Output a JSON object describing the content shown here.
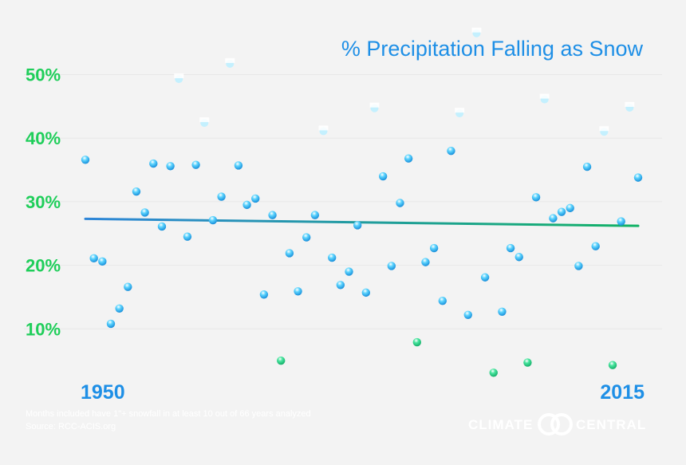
{
  "chart_data": {
    "type": "scatter",
    "title": "% Precipitation Falling as Snow",
    "xlabel": "",
    "ylabel": "",
    "xlim": [
      1950,
      2015
    ],
    "ylim": [
      0,
      55
    ],
    "y_ticks": [
      {
        "value": 10,
        "label": "10%"
      },
      {
        "value": 20,
        "label": "20%"
      },
      {
        "value": 30,
        "label": "30%"
      },
      {
        "value": 40,
        "label": "40%"
      },
      {
        "value": 50,
        "label": "50%"
      }
    ],
    "x_ticks": [
      {
        "value": 1950,
        "label": "1950"
      },
      {
        "value": 2015,
        "label": "2015"
      }
    ],
    "grid": true,
    "series": [
      {
        "points": [
          [
            1950,
            36.6
          ],
          [
            1951,
            21.1
          ],
          [
            1952,
            20.6
          ],
          [
            1953,
            10.8
          ],
          [
            1954,
            13.2
          ],
          [
            1955,
            16.6
          ],
          [
            1956,
            31.6
          ],
          [
            1957,
            28.3
          ],
          [
            1958,
            36.0
          ],
          [
            1959,
            26.1
          ],
          [
            1960,
            35.6
          ],
          [
            1961,
            49.3
          ],
          [
            1962,
            24.5
          ],
          [
            1963,
            35.8
          ],
          [
            1964,
            42.4
          ],
          [
            1965,
            27.1
          ],
          [
            1966,
            30.8
          ],
          [
            1967,
            51.7
          ],
          [
            1968,
            35.7
          ],
          [
            1969,
            29.5
          ],
          [
            1970,
            30.5
          ],
          [
            1971,
            15.4
          ],
          [
            1972,
            27.9
          ],
          [
            1973,
            5.0
          ],
          [
            1974,
            21.9
          ],
          [
            1975,
            15.9
          ],
          [
            1976,
            24.4
          ],
          [
            1977,
            27.9
          ],
          [
            1978,
            41.1
          ],
          [
            1979,
            21.2
          ],
          [
            1980,
            16.9
          ],
          [
            1981,
            19.0
          ],
          [
            1982,
            26.3
          ],
          [
            1983,
            15.7
          ],
          [
            1984,
            44.7
          ],
          [
            1985,
            34.0
          ],
          [
            1986,
            19.9
          ],
          [
            1987,
            29.8
          ],
          [
            1988,
            36.8
          ],
          [
            1989,
            7.9
          ],
          [
            1990,
            20.5
          ],
          [
            1991,
            22.7
          ],
          [
            1992,
            14.4
          ],
          [
            1993,
            38.0
          ],
          [
            1994,
            43.9
          ],
          [
            1995,
            12.2
          ],
          [
            1996,
            56.5
          ],
          [
            1997,
            18.1
          ],
          [
            1998,
            3.1
          ],
          [
            1999,
            12.7
          ],
          [
            2000,
            22.7
          ],
          [
            2001,
            21.3
          ],
          [
            2002,
            4.7
          ],
          [
            2003,
            30.7
          ],
          [
            2004,
            46.1
          ],
          [
            2005,
            27.4
          ],
          [
            2006,
            28.4
          ],
          [
            2007,
            29.0
          ],
          [
            2008,
            19.9
          ],
          [
            2009,
            35.5
          ],
          [
            2010,
            23.0
          ],
          [
            2011,
            41.0
          ],
          [
            2012,
            4.3
          ],
          [
            2013,
            26.9
          ],
          [
            2014,
            44.8
          ],
          [
            2015,
            33.8
          ]
        ]
      }
    ],
    "trend": {
      "x": [
        1950,
        2015
      ],
      "y": [
        27.3,
        26.2
      ]
    },
    "colors": {
      "background": "#f3f3f3",
      "point": "#1bb4ef",
      "point_low": "#1fd07e",
      "trend_start": "#2f86d8",
      "trend_end": "#12b265",
      "title": "#1e8fe6",
      "y_tick": "#1fce5a",
      "x_tick": "#1e8fe6"
    }
  },
  "footer": {
    "note": "Months included have 1\"+ snowfall in at least 10 out of 66 years analyzed",
    "source": "Source: RCC-ACIS.org",
    "logo_left": "CLIMATE",
    "logo_right": "CENTRAL"
  }
}
